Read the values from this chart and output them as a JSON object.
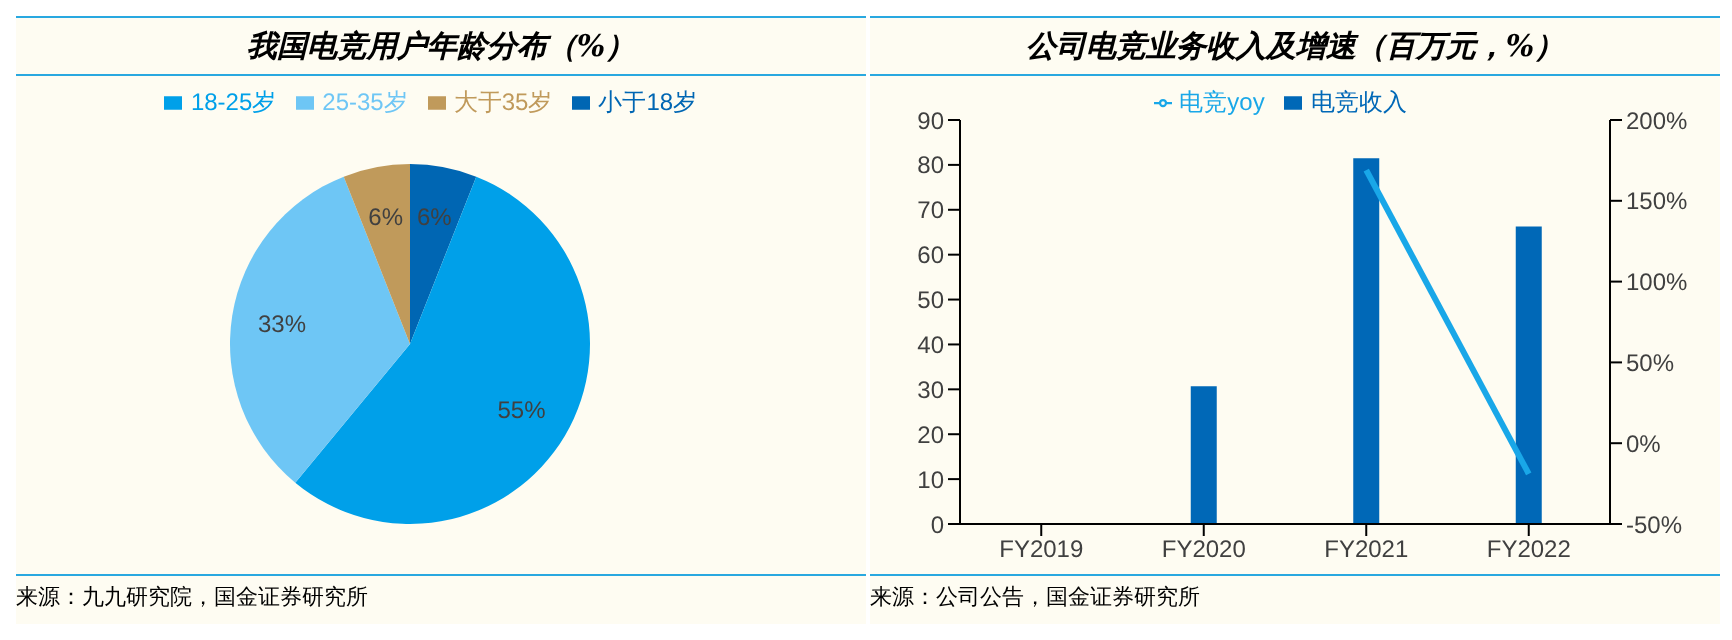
{
  "chart_data": [
    {
      "type": "pie",
      "title": "我国电竞用户年龄分布（%）",
      "categories": [
        "小于18岁",
        "18-25岁",
        "25-35岁",
        "大于35岁"
      ],
      "values": [
        6,
        55,
        33,
        6
      ],
      "value_labels": [
        "6%",
        "55%",
        "33%",
        "6%"
      ],
      "colors": [
        "#0066b3",
        "#00a0e9",
        "#6ec6f5",
        "#c09a5b"
      ],
      "legend": "top",
      "annotations": [
        "来源：九九研究院，国金证券研究所"
      ]
    },
    {
      "type": "bar",
      "title": "公司电竞业务收入及增速（百万元，%）",
      "categories": [
        "FY2019",
        "FY2020",
        "FY2021",
        "FY2022"
      ],
      "series": [
        {
          "name": "电竞收入",
          "type": "bar",
          "color": "#0068b7",
          "values": [
            null,
            30.7,
            81.5,
            66.3
          ]
        },
        {
          "name": "电竞yoy",
          "type": "line",
          "axis": "y2",
          "color": "#19a7e8",
          "values": [
            null,
            null,
            169,
            -19
          ]
        }
      ],
      "ylim": [
        0,
        90
      ],
      "yticks": [
        0,
        10,
        20,
        30,
        40,
        50,
        60,
        70,
        80,
        90
      ],
      "y2lim": [
        -50,
        200
      ],
      "y2ticks": [
        {
          "value": -50,
          "label": "-50%"
        },
        {
          "value": 0,
          "label": "0%"
        },
        {
          "value": 50,
          "label": "50%"
        },
        {
          "value": 100,
          "label": "100%"
        },
        {
          "value": 150,
          "label": "150%"
        },
        {
          "value": 200,
          "label": "200%"
        }
      ],
      "grid": false,
      "legend": "top",
      "marker": "none",
      "annotations": [
        "来源：公司公告，国金证券研究所"
      ]
    }
  ]
}
